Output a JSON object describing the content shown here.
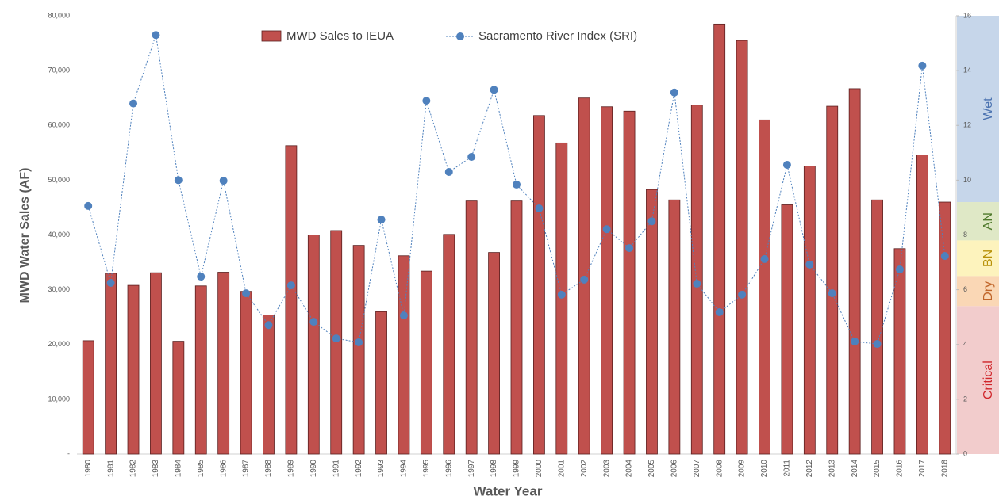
{
  "chart_data": {
    "type": "bar",
    "x_label": "Water Year",
    "y_label": "MWD Water Sales (AF)",
    "legend": "top",
    "grid": false,
    "categories": [
      "1980",
      "1981",
      "1982",
      "1983",
      "1984",
      "1985",
      "1986",
      "1987",
      "1988",
      "1989",
      "1990",
      "1991",
      "1992",
      "1993",
      "1994",
      "1995",
      "1996",
      "1997",
      "1998",
      "1999",
      "2000",
      "2001",
      "2002",
      "2003",
      "2004",
      "2005",
      "2006",
      "2007",
      "2008",
      "2009",
      "2010",
      "2011",
      "2012",
      "2013",
      "2014",
      "2015",
      "2016",
      "2017",
      "2018"
    ],
    "series": [
      {
        "name": "MWD Sales to IEUA",
        "type": "bar",
        "color": "#c0504d",
        "values": [
          20700,
          33000,
          30800,
          33100,
          20600,
          30700,
          33200,
          29700,
          25400,
          56300,
          40000,
          40800,
          38100,
          26000,
          36200,
          33400,
          40100,
          46200,
          36800,
          46200,
          61800,
          56800,
          65000,
          63400,
          62600,
          48300,
          46400,
          63700,
          78500,
          75500,
          61000,
          45500,
          52600,
          63500,
          66700,
          46400,
          37500,
          54600,
          46000
        ]
      },
      {
        "name": "Sacramento River Index (SRI)",
        "type": "line",
        "axis": "y2",
        "color": "#4f81bd",
        "values": [
          9.06,
          6.25,
          12.8,
          15.3,
          10.0,
          6.48,
          9.98,
          5.87,
          4.71,
          6.16,
          4.83,
          4.22,
          4.08,
          8.56,
          5.06,
          12.9,
          10.3,
          10.85,
          13.3,
          9.84,
          8.97,
          5.82,
          6.37,
          8.21,
          7.52,
          8.5,
          13.2,
          6.22,
          5.18,
          5.82,
          7.12,
          10.56,
          6.92,
          5.87,
          4.11,
          4.02,
          6.74,
          14.18,
          7.23
        ]
      }
    ],
    "ylim": [
      0,
      80000
    ],
    "yticks": [
      {
        "value": 0,
        "label": "-"
      },
      {
        "value": 10000,
        "label": "10,000"
      },
      {
        "value": 20000,
        "label": "20,000"
      },
      {
        "value": 30000,
        "label": "30,000"
      },
      {
        "value": 40000,
        "label": "40,000"
      },
      {
        "value": 50000,
        "label": "50,000"
      },
      {
        "value": 60000,
        "label": "60,000"
      },
      {
        "value": 70000,
        "label": "70,000"
      },
      {
        "value": 80000,
        "label": "80,000"
      }
    ],
    "y2lim": [
      0,
      16
    ],
    "y2ticks": [
      0,
      2,
      4,
      6,
      8,
      10,
      12,
      14,
      16
    ],
    "bands": [
      {
        "label": "Wet",
        "from": 9.2,
        "to": 16,
        "color": "#c6d6ea",
        "text_color": "#4a72b0"
      },
      {
        "label": "AN",
        "from": 7.8,
        "to": 9.2,
        "color": "#dfe8c6",
        "text_color": "#4f7a2c"
      },
      {
        "label": "BN",
        "from": 6.5,
        "to": 7.8,
        "color": "#fdf3bd",
        "text_color": "#b8920a"
      },
      {
        "label": "Dry",
        "from": 5.4,
        "to": 6.5,
        "color": "#fad7b5",
        "text_color": "#c0652a"
      },
      {
        "label": "Critical",
        "from": 0,
        "to": 5.4,
        "color": "#f2cccc",
        "text_color": "#d0262b"
      }
    ]
  }
}
